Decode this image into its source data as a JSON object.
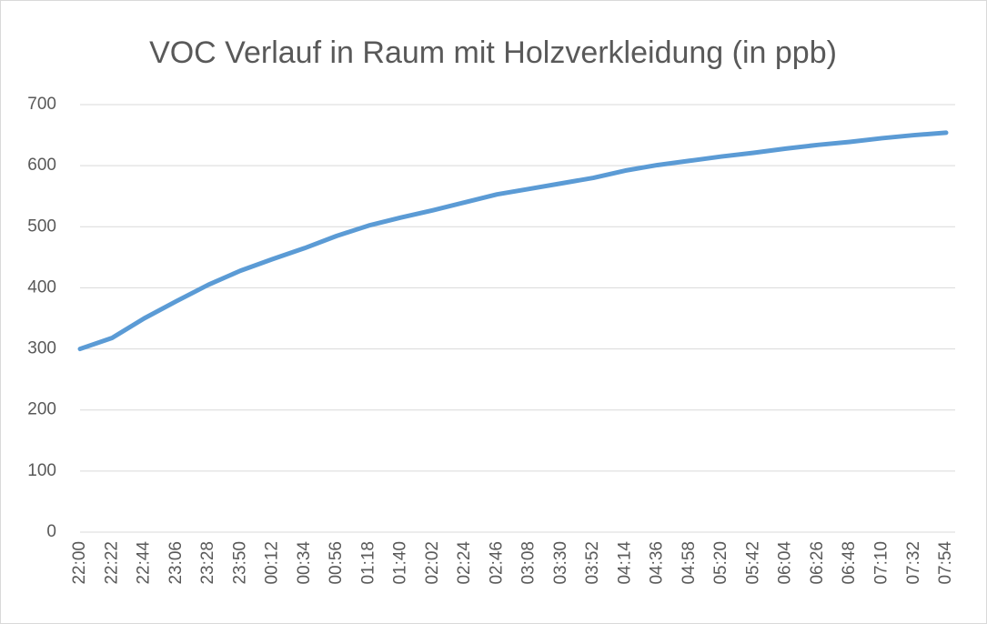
{
  "chart_data": {
    "type": "line",
    "title": "VOC Verlauf in Raum mit Holzverkleidung (in ppb)",
    "categories": [
      "22:00",
      "22:22",
      "22:44",
      "23:06",
      "23:28",
      "23:50",
      "00:12",
      "00:34",
      "00:56",
      "01:18",
      "01:40",
      "02:02",
      "02:24",
      "02:46",
      "03:08",
      "03:30",
      "03:52",
      "04:14",
      "04:36",
      "04:58",
      "05:20",
      "05:42",
      "06:04",
      "06:26",
      "06:48",
      "07:10",
      "07:32",
      "07:54"
    ],
    "series": [
      {
        "name": "VOC",
        "color": "#5b9bd5",
        "values": [
          300,
          318,
          350,
          378,
          405,
          428,
          447,
          465,
          485,
          502,
          515,
          527,
          540,
          553,
          562,
          571,
          580,
          592,
          601,
          608,
          615,
          621,
          628,
          634,
          639,
          645,
          650,
          654
        ]
      }
    ],
    "ylim": [
      0,
      700
    ],
    "yticks": [
      0,
      100,
      200,
      300,
      400,
      500,
      600,
      700
    ],
    "grid": true
  }
}
